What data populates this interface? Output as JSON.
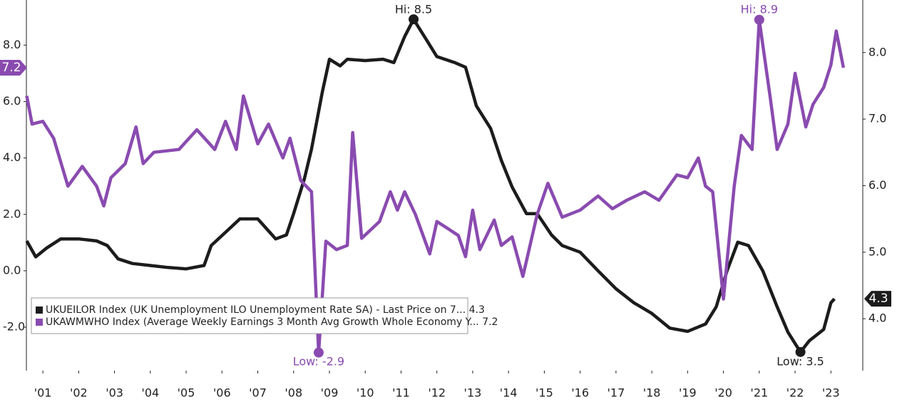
{
  "chart_data": {
    "type": "line",
    "xlim": [
      2001.04,
      2024.39
    ],
    "xticks": [
      {
        "value": 2001.5,
        "label": "'01"
      },
      {
        "value": 2002.5,
        "label": "'02"
      },
      {
        "value": 2003.5,
        "label": "'03"
      },
      {
        "value": 2004.5,
        "label": "'04"
      },
      {
        "value": 2005.5,
        "label": "'05"
      },
      {
        "value": 2006.5,
        "label": "'06"
      },
      {
        "value": 2007.5,
        "label": "'07"
      },
      {
        "value": 2008.5,
        "label": "'08"
      },
      {
        "value": 2009.5,
        "label": "'09"
      },
      {
        "value": 2010.5,
        "label": "'10"
      },
      {
        "value": 2011.5,
        "label": "'11"
      },
      {
        "value": 2012.5,
        "label": "'12"
      },
      {
        "value": 2013.5,
        "label": "'13"
      },
      {
        "value": 2014.5,
        "label": "'14"
      },
      {
        "value": 2015.5,
        "label": "'15"
      },
      {
        "value": 2016.5,
        "label": "'16"
      },
      {
        "value": 2017.5,
        "label": "'17"
      },
      {
        "value": 2018.5,
        "label": "'18"
      },
      {
        "value": 2019.5,
        "label": "'19"
      },
      {
        "value": 2020.5,
        "label": "'20"
      },
      {
        "value": 2021.5,
        "label": "'21"
      },
      {
        "value": 2022.5,
        "label": "'22"
      },
      {
        "value": 2023.5,
        "label": "'23"
      }
    ],
    "ylim": [
      -3.54,
      9.6
    ],
    "yticks": [
      {
        "value": -2,
        "label": "-2.0"
      },
      {
        "value": 0,
        "label": "0.0"
      },
      {
        "value": 2,
        "label": "2.0"
      },
      {
        "value": 4,
        "label": "4.0"
      },
      {
        "value": 6,
        "label": "6.0"
      },
      {
        "value": 8,
        "label": "8.0"
      }
    ],
    "y2lim": [
      3.22,
      8.79
    ],
    "y2ticks": [
      {
        "value": 4,
        "label": "4.0"
      },
      {
        "value": 5,
        "label": "5.0"
      },
      {
        "value": 6,
        "label": "6.0"
      },
      {
        "value": 7,
        "label": "7.0"
      },
      {
        "value": 8,
        "label": "8.0"
      }
    ],
    "series": [
      {
        "name": "UKUEILOR Index (UK Unemployment ILO Unemployment Rate SA) - Last Price on 7... 4.3",
        "color": "#1c1c1c",
        "axis": "y2",
        "tag_label": "4.3",
        "x": [
          2001.05,
          2001.3,
          2001.6,
          2002.0,
          2002.5,
          2003.0,
          2003.3,
          2003.6,
          2004.0,
          2004.5,
          2005.0,
          2005.5,
          2006.0,
          2006.2,
          2006.5,
          2006.8,
          2007.0,
          2007.5,
          2008.0,
          2008.3,
          2008.5,
          2008.8,
          2009.0,
          2009.3,
          2009.5,
          2009.8,
          2010.0,
          2010.5,
          2011.0,
          2011.3,
          2011.6,
          2011.85,
          2012.2,
          2012.5,
          2013.0,
          2013.3,
          2013.6,
          2014.0,
          2014.3,
          2014.6,
          2015.0,
          2015.3,
          2015.7,
          2016.0,
          2016.5,
          2017.0,
          2017.5,
          2018.0,
          2018.5,
          2019.0,
          2019.5,
          2020.0,
          2020.3,
          2020.6,
          2020.9,
          2021.2,
          2021.6,
          2022.0,
          2022.3,
          2022.65,
          2022.9,
          2023.3,
          2023.5,
          2023.6
        ],
        "values": [
          5.17,
          4.93,
          5.06,
          5.2,
          5.2,
          5.17,
          5.1,
          4.9,
          4.83,
          4.8,
          4.77,
          4.75,
          4.8,
          5.1,
          5.25,
          5.4,
          5.5,
          5.5,
          5.2,
          5.26,
          5.58,
          6.1,
          6.55,
          7.4,
          7.9,
          7.8,
          7.9,
          7.88,
          7.9,
          7.85,
          8.24,
          8.5,
          8.2,
          7.94,
          7.85,
          7.78,
          7.2,
          6.86,
          6.38,
          5.98,
          5.58,
          5.58,
          5.26,
          5.1,
          5.0,
          4.72,
          4.45,
          4.24,
          4.08,
          3.86,
          3.81,
          3.92,
          4.18,
          4.72,
          5.15,
          5.1,
          4.72,
          4.18,
          3.8,
          3.5,
          3.67,
          3.84,
          4.24,
          4.3
        ]
      },
      {
        "name": "UKAWMWHO Index (Average Weekly Earnings 3 Month Avg Growth Whole Economy Y... 7.2",
        "color": "#8a4bb0",
        "axis": "y",
        "tag_label": "7.2",
        "x": [
          2001.05,
          2001.2,
          2001.5,
          2001.8,
          2002.2,
          2002.6,
          2003.0,
          2003.2,
          2003.4,
          2003.8,
          2004.1,
          2004.3,
          2004.6,
          2005.3,
          2005.8,
          2006.3,
          2006.6,
          2006.9,
          2007.1,
          2007.5,
          2007.8,
          2008.2,
          2008.4,
          2008.7,
          2009.0,
          2009.2,
          2009.4,
          2009.7,
          2010.0,
          2010.15,
          2010.4,
          2010.9,
          2011.2,
          2011.4,
          2011.6,
          2011.9,
          2012.3,
          2012.5,
          2012.8,
          2013.1,
          2013.3,
          2013.5,
          2013.7,
          2014.1,
          2014.3,
          2014.6,
          2014.9,
          2015.3,
          2015.6,
          2016.0,
          2016.5,
          2017.0,
          2017.4,
          2017.8,
          2018.3,
          2018.7,
          2019.2,
          2019.5,
          2019.8,
          2020.0,
          2020.2,
          2020.5,
          2020.8,
          2021.0,
          2021.3,
          2021.5,
          2021.8,
          2022.0,
          2022.3,
          2022.5,
          2022.8,
          2023.0,
          2023.3,
          2023.5,
          2023.65,
          2023.85
        ],
        "values": [
          6.2,
          5.2,
          5.3,
          4.7,
          3.0,
          3.7,
          3.0,
          2.3,
          3.3,
          3.8,
          5.1,
          3.8,
          4.2,
          4.3,
          5.0,
          4.3,
          5.3,
          4.3,
          6.2,
          4.5,
          5.2,
          4.0,
          4.7,
          3.2,
          2.8,
          -2.9,
          1.05,
          0.75,
          0.9,
          4.9,
          1.15,
          1.75,
          2.8,
          2.15,
          2.8,
          2.0,
          0.6,
          1.75,
          1.5,
          1.25,
          0.5,
          2.15,
          0.75,
          1.8,
          0.9,
          1.2,
          -0.2,
          2.0,
          3.1,
          1.9,
          2.15,
          2.65,
          2.2,
          2.5,
          2.8,
          2.5,
          3.4,
          3.3,
          4.0,
          3.0,
          2.8,
          -1.0,
          3.0,
          4.8,
          4.3,
          8.9,
          6.2,
          4.3,
          5.2,
          7.0,
          5.1,
          5.9,
          6.5,
          7.3,
          8.5,
          7.2
        ]
      }
    ],
    "annotations": [
      {
        "text": "Hi: 8.5",
        "series": 0,
        "index": 31,
        "position": "above"
      },
      {
        "text": "Low: 3.5",
        "series": 0,
        "index": 59,
        "position": "below"
      },
      {
        "text": "Hi: 8.9",
        "series": 1,
        "index": 65,
        "position": "above"
      },
      {
        "text": "Low: -2.9",
        "series": 1,
        "index": 25,
        "position": "below"
      }
    ]
  }
}
